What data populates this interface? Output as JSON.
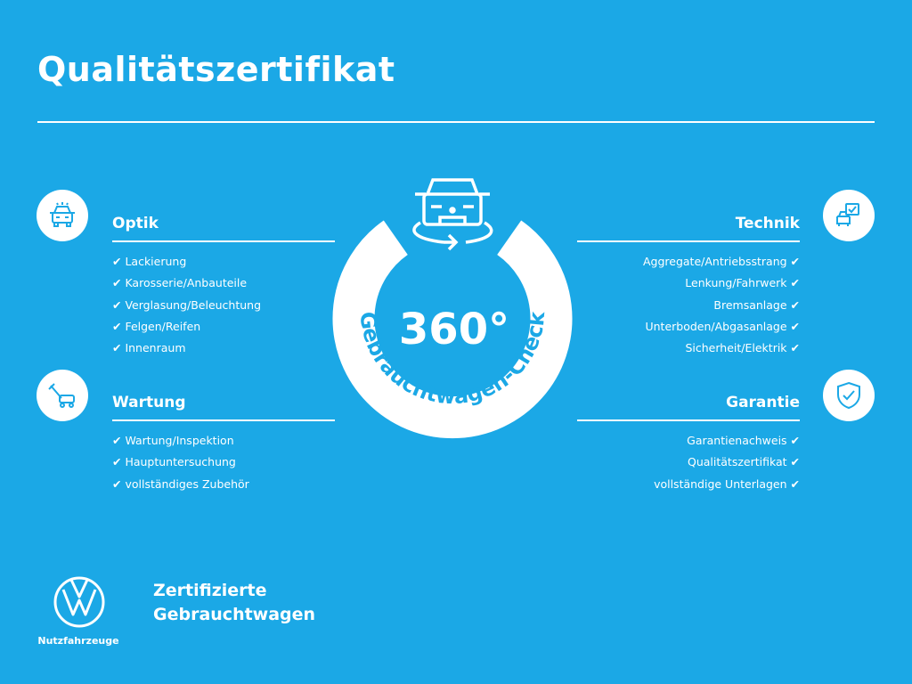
{
  "title": "Qualitätszertifikat",
  "colors": {
    "background": "#1ba8e6",
    "foreground": "#ffffff"
  },
  "center": {
    "big": "360°",
    "arc_text": "Gebrauchtwagen-Check",
    "icon": "car-rotate-icon"
  },
  "sections": {
    "optik": {
      "heading": "Optik",
      "icon": "car-front-icon",
      "items": [
        "✔ Lackierung",
        "✔ Karosserie/Anbauteile",
        "✔ Verglasung/Beleuchtung",
        "✔ Felgen/Reifen",
        "✔ Innenraum"
      ]
    },
    "wartung": {
      "heading": "Wartung",
      "icon": "service-tools-icon",
      "items": [
        "✔ Wartung/Inspektion",
        "✔ Hauptuntersuchung",
        "✔ vollständiges Zubehör"
      ]
    },
    "technik": {
      "heading": "Technik",
      "icon": "checklist-car-icon",
      "items": [
        "Aggregate/Antriebsstrang ✔",
        "Lenkung/Fahrwerk ✔",
        "Bremsanlage ✔",
        "Unterboden/Abgasanlage ✔",
        "Sicherheit/Elektrik ✔"
      ]
    },
    "garantie": {
      "heading": "Garantie",
      "icon": "shield-check-icon",
      "items": [
        "Garantienachweis ✔",
        "Qualitätszertifikat ✔",
        "vollständige Unterlagen ✔"
      ]
    }
  },
  "footer": {
    "line1": "Zertifizierte",
    "line2": "Gebrauchtwagen",
    "brand_sub": "Nutzfahrzeuge",
    "logo": "vw-logo"
  }
}
